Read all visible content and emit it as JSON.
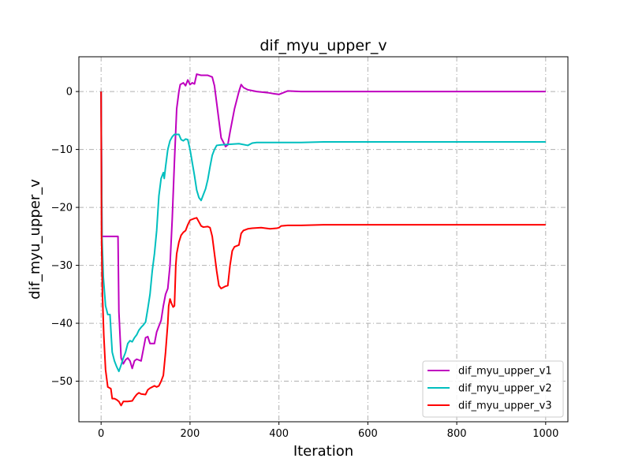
{
  "chart_data": {
    "type": "line",
    "title": "dif_myu_upper_v",
    "xlabel": "Iteration",
    "ylabel": "dif_myu_upper_v",
    "xlim": [
      -50,
      1050
    ],
    "ylim": [
      -57,
      6
    ],
    "xticks": [
      0,
      200,
      400,
      600,
      800,
      1000
    ],
    "yticks": [
      0,
      -10,
      -20,
      -30,
      -40,
      -50
    ],
    "grid": true,
    "legend_position": "bottom-right",
    "series": [
      {
        "name": "dif_myu_upper_v1",
        "color": "#bf00bf",
        "points": [
          [
            0,
            0
          ],
          [
            2,
            -25
          ],
          [
            10,
            -25
          ],
          [
            20,
            -25
          ],
          [
            30,
            -25
          ],
          [
            38,
            -25
          ],
          [
            40,
            -38
          ],
          [
            45,
            -46
          ],
          [
            50,
            -47
          ],
          [
            55,
            -46.3
          ],
          [
            60,
            -46
          ],
          [
            65,
            -46.5
          ],
          [
            70,
            -47.8
          ],
          [
            75,
            -46.5
          ],
          [
            80,
            -46.2
          ],
          [
            90,
            -46.5
          ],
          [
            95,
            -44.5
          ],
          [
            100,
            -42.5
          ],
          [
            105,
            -42.3
          ],
          [
            110,
            -43.5
          ],
          [
            120,
            -43.5
          ],
          [
            125,
            -41.5
          ],
          [
            130,
            -40.5
          ],
          [
            135,
            -39.5
          ],
          [
            140,
            -37
          ],
          [
            145,
            -35
          ],
          [
            150,
            -34
          ],
          [
            155,
            -30
          ],
          [
            160,
            -22
          ],
          [
            165,
            -12
          ],
          [
            170,
            -3
          ],
          [
            175,
            0
          ],
          [
            178,
            1.2
          ],
          [
            185,
            1.5
          ],
          [
            190,
            1
          ],
          [
            195,
            2
          ],
          [
            200,
            1.2
          ],
          [
            205,
            1.5
          ],
          [
            210,
            1.3
          ],
          [
            215,
            3
          ],
          [
            225,
            2.8
          ],
          [
            240,
            2.8
          ],
          [
            250,
            2.5
          ],
          [
            255,
            1
          ],
          [
            260,
            -2
          ],
          [
            265,
            -5
          ],
          [
            270,
            -8
          ],
          [
            280,
            -9.5
          ],
          [
            285,
            -9.2
          ],
          [
            290,
            -7
          ],
          [
            300,
            -3
          ],
          [
            310,
            0
          ],
          [
            315,
            1.2
          ],
          [
            320,
            0.7
          ],
          [
            330,
            0.3
          ],
          [
            350,
            0
          ],
          [
            375,
            -0.2
          ],
          [
            390,
            -0.4
          ],
          [
            400,
            -0.5
          ],
          [
            410,
            -0.2
          ],
          [
            420,
            0.1
          ],
          [
            450,
            0
          ],
          [
            500,
            0
          ],
          [
            600,
            0
          ],
          [
            800,
            0
          ],
          [
            1000,
            0
          ]
        ]
      },
      {
        "name": "dif_myu_upper_v2",
        "color": "#00bfbf",
        "points": [
          [
            0,
            0
          ],
          [
            2,
            -25
          ],
          [
            5,
            -32
          ],
          [
            10,
            -37
          ],
          [
            15,
            -38.5
          ],
          [
            20,
            -38.5
          ],
          [
            23,
            -42.5
          ],
          [
            25,
            -45
          ],
          [
            30,
            -46.5
          ],
          [
            35,
            -47.5
          ],
          [
            40,
            -48.3
          ],
          [
            45,
            -47.2
          ],
          [
            50,
            -46
          ],
          [
            55,
            -45
          ],
          [
            60,
            -43.5
          ],
          [
            65,
            -43
          ],
          [
            70,
            -43.2
          ],
          [
            75,
            -42.5
          ],
          [
            80,
            -42
          ],
          [
            85,
            -41.2
          ],
          [
            90,
            -40.7
          ],
          [
            95,
            -40.3
          ],
          [
            100,
            -39.8
          ],
          [
            105,
            -37.5
          ],
          [
            110,
            -35
          ],
          [
            115,
            -31
          ],
          [
            120,
            -28
          ],
          [
            125,
            -24
          ],
          [
            130,
            -18
          ],
          [
            135,
            -15
          ],
          [
            140,
            -14
          ],
          [
            142,
            -15
          ],
          [
            145,
            -13
          ],
          [
            150,
            -10
          ],
          [
            155,
            -8.5
          ],
          [
            160,
            -7.8
          ],
          [
            165,
            -7.4
          ],
          [
            175,
            -7.4
          ],
          [
            180,
            -8.3
          ],
          [
            185,
            -8.5
          ],
          [
            190,
            -8.2
          ],
          [
            195,
            -8.3
          ],
          [
            200,
            -10
          ],
          [
            210,
            -14.5
          ],
          [
            215,
            -17
          ],
          [
            220,
            -18.3
          ],
          [
            225,
            -18.8
          ],
          [
            230,
            -17.8
          ],
          [
            235,
            -16.8
          ],
          [
            240,
            -15.2
          ],
          [
            245,
            -13
          ],
          [
            250,
            -11
          ],
          [
            255,
            -10
          ],
          [
            260,
            -9.3
          ],
          [
            270,
            -9.2
          ],
          [
            290,
            -9.1
          ],
          [
            310,
            -9.0
          ],
          [
            330,
            -9.3
          ],
          [
            340,
            -8.9
          ],
          [
            350,
            -8.8
          ],
          [
            400,
            -8.8
          ],
          [
            450,
            -8.8
          ],
          [
            500,
            -8.7
          ],
          [
            600,
            -8.7
          ],
          [
            800,
            -8.7
          ],
          [
            1000,
            -8.7
          ]
        ]
      },
      {
        "name": "dif_myu_upper_v3",
        "color": "#ff0000",
        "points": [
          [
            0,
            0
          ],
          [
            1,
            -25
          ],
          [
            3,
            -35
          ],
          [
            6,
            -42
          ],
          [
            10,
            -48
          ],
          [
            15,
            -51
          ],
          [
            20,
            -51.2
          ],
          [
            22,
            -51.3
          ],
          [
            25,
            -53
          ],
          [
            30,
            -53
          ],
          [
            35,
            -53.2
          ],
          [
            40,
            -53.5
          ],
          [
            45,
            -54.2
          ],
          [
            50,
            -53.5
          ],
          [
            60,
            -53.5
          ],
          [
            70,
            -53.4
          ],
          [
            75,
            -52.8
          ],
          [
            80,
            -52.3
          ],
          [
            85,
            -52
          ],
          [
            90,
            -52.2
          ],
          [
            100,
            -52.3
          ],
          [
            105,
            -51.5
          ],
          [
            110,
            -51.2
          ],
          [
            120,
            -50.8
          ],
          [
            125,
            -51
          ],
          [
            130,
            -50.8
          ],
          [
            135,
            -50
          ],
          [
            140,
            -49
          ],
          [
            145,
            -45
          ],
          [
            150,
            -40
          ],
          [
            152,
            -37
          ],
          [
            155,
            -35.8
          ],
          [
            158,
            -36.5
          ],
          [
            162,
            -37.2
          ],
          [
            165,
            -37
          ],
          [
            168,
            -30
          ],
          [
            170,
            -28
          ],
          [
            175,
            -26
          ],
          [
            180,
            -24.8
          ],
          [
            185,
            -24.3
          ],
          [
            190,
            -24
          ],
          [
            195,
            -23
          ],
          [
            200,
            -22.2
          ],
          [
            210,
            -21.9
          ],
          [
            215,
            -21.8
          ],
          [
            220,
            -22.5
          ],
          [
            225,
            -23.2
          ],
          [
            230,
            -23.4
          ],
          [
            240,
            -23.3
          ],
          [
            245,
            -23.5
          ],
          [
            250,
            -25
          ],
          [
            255,
            -28
          ],
          [
            260,
            -31
          ],
          [
            265,
            -33.5
          ],
          [
            270,
            -34
          ],
          [
            280,
            -33.6
          ],
          [
            285,
            -33.5
          ],
          [
            290,
            -30
          ],
          [
            295,
            -27.5
          ],
          [
            300,
            -26.8
          ],
          [
            310,
            -26.5
          ],
          [
            315,
            -24.5
          ],
          [
            320,
            -24
          ],
          [
            330,
            -23.7
          ],
          [
            340,
            -23.6
          ],
          [
            360,
            -23.5
          ],
          [
            370,
            -23.6
          ],
          [
            380,
            -23.7
          ],
          [
            395,
            -23.6
          ],
          [
            400,
            -23.5
          ],
          [
            405,
            -23.2
          ],
          [
            420,
            -23.1
          ],
          [
            450,
            -23.1
          ],
          [
            500,
            -23.0
          ],
          [
            600,
            -23.0
          ],
          [
            800,
            -23.0
          ],
          [
            1000,
            -23.0
          ]
        ]
      }
    ]
  }
}
